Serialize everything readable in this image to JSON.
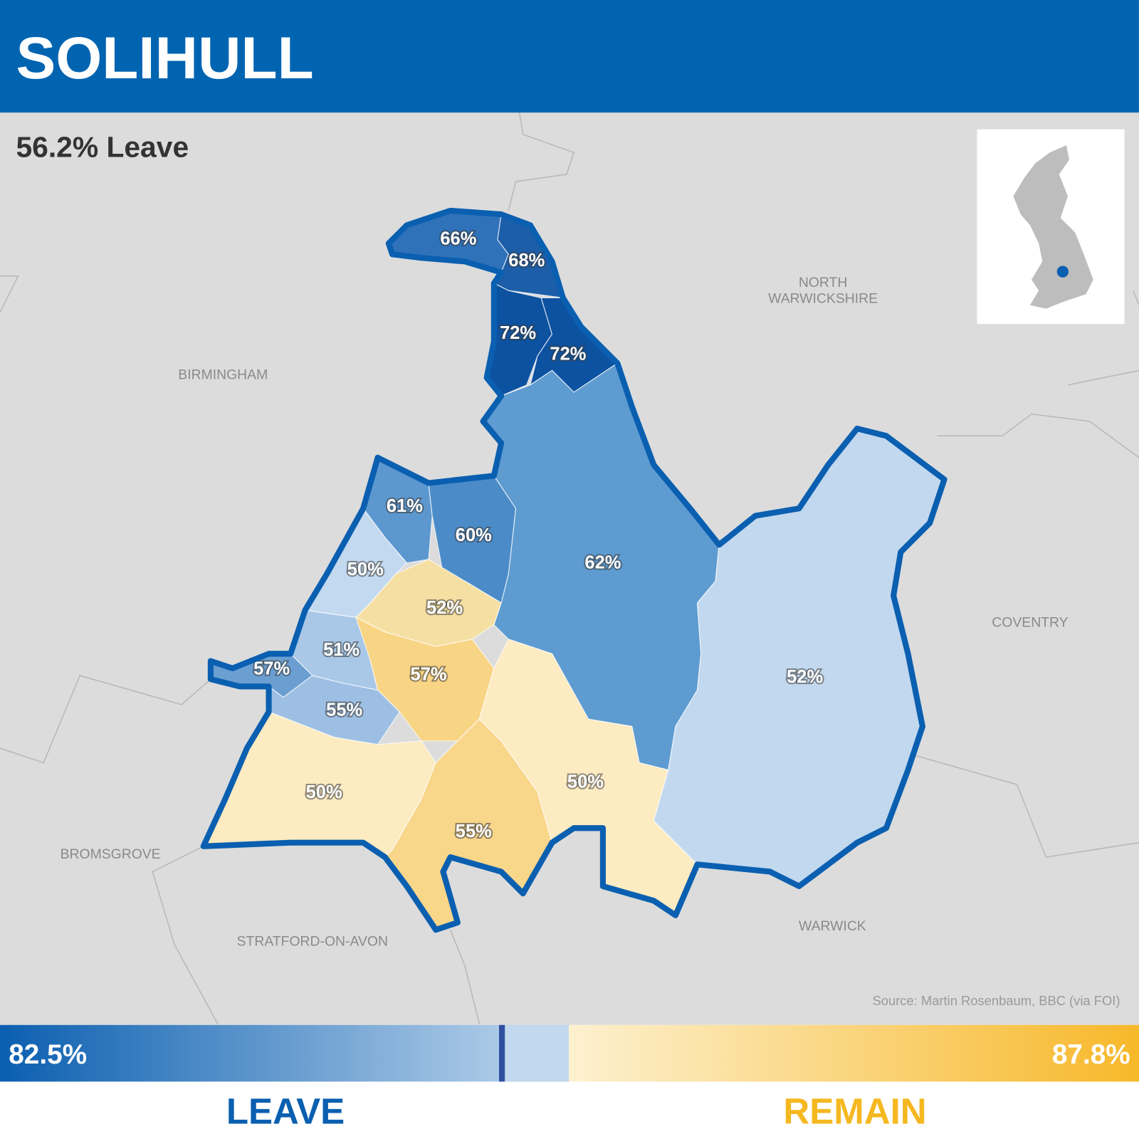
{
  "header": {
    "title": "SOLIHULL"
  },
  "summary": "56.2% Leave",
  "places": [
    [
      "NORTH",
      "WARWICKSHIRE"
    ],
    [
      "BIRMINGHAM"
    ],
    [
      "COVENTRY"
    ],
    [
      "BROMSGROVE"
    ],
    [
      "WARWICK"
    ],
    [
      "STRATFORD-ON-AVON"
    ]
  ],
  "wards": [
    "66%",
    "68%",
    "72%",
    "72%",
    "62%",
    "61%",
    "60%",
    "50%",
    "52%",
    "51%",
    "57%",
    "57%",
    "55%",
    "50%",
    "55%",
    "50%",
    "52%"
  ],
  "source": "Source: Martin Rosenbaum, BBC (via FOI)",
  "legend": {
    "leave_max": "82.5%",
    "remain_max": "87.8%",
    "leave": "LEAVE",
    "remain": "REMAIN"
  }
}
